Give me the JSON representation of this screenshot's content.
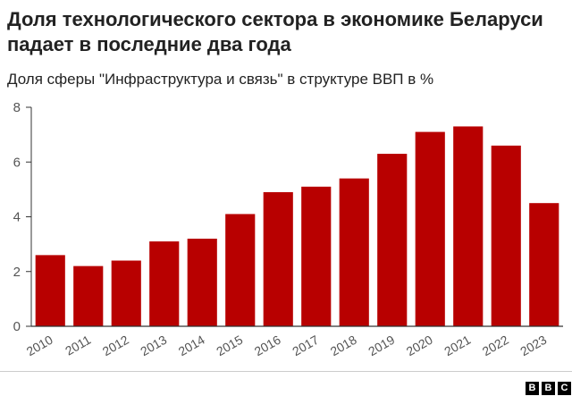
{
  "title": "Доля технологического сектора в экономике Беларуси падает в последние два года",
  "subtitle": "Доля сферы \"Инфраструктура и связь\" в структуре ВВП в %",
  "logo": [
    "B",
    "B",
    "C"
  ],
  "colors": {
    "bar": "#b80000",
    "axis": "#333333",
    "text": "#555555"
  },
  "chart_data": {
    "type": "bar",
    "categories": [
      "2010",
      "2011",
      "2012",
      "2013",
      "2014",
      "2015",
      "2016",
      "2017",
      "2018",
      "2019",
      "2020",
      "2021",
      "2022",
      "2023"
    ],
    "values": [
      2.6,
      2.2,
      2.4,
      3.1,
      3.2,
      4.1,
      4.9,
      5.1,
      5.4,
      6.3,
      7.1,
      7.3,
      6.6,
      4.5
    ],
    "ylim": [
      0,
      8
    ],
    "yticks": [
      0,
      2,
      4,
      6,
      8
    ],
    "grid": false
  }
}
